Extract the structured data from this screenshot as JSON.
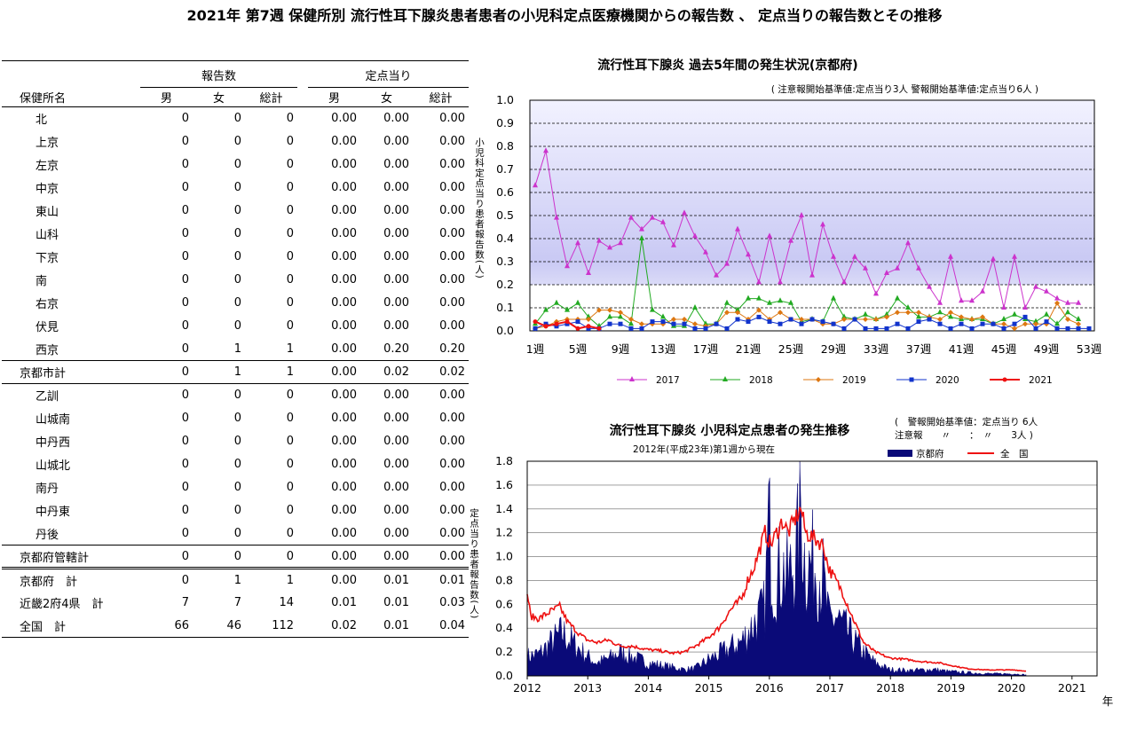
{
  "page_title": "2021年 第7週 保健所別 流行性耳下腺炎患者患者の小児科定点医療機関からの報告数 、 定点当りの報告数とその推移",
  "table": {
    "group_headers": [
      "報告数",
      "定点当り"
    ],
    "name_header": "保健所名",
    "col_headers": [
      "男",
      "女",
      "総計",
      "男",
      "女",
      "総計"
    ],
    "rows": [
      {
        "name": "北",
        "v": [
          "0",
          "0",
          "0",
          "0.00",
          "0.00",
          "0.00"
        ]
      },
      {
        "name": "上京",
        "v": [
          "0",
          "0",
          "0",
          "0.00",
          "0.00",
          "0.00"
        ]
      },
      {
        "name": "左京",
        "v": [
          "0",
          "0",
          "0",
          "0.00",
          "0.00",
          "0.00"
        ]
      },
      {
        "name": "中京",
        "v": [
          "0",
          "0",
          "0",
          "0.00",
          "0.00",
          "0.00"
        ]
      },
      {
        "name": "東山",
        "v": [
          "0",
          "0",
          "0",
          "0.00",
          "0.00",
          "0.00"
        ]
      },
      {
        "name": "山科",
        "v": [
          "0",
          "0",
          "0",
          "0.00",
          "0.00",
          "0.00"
        ]
      },
      {
        "name": "下京",
        "v": [
          "0",
          "0",
          "0",
          "0.00",
          "0.00",
          "0.00"
        ]
      },
      {
        "name": "南",
        "v": [
          "0",
          "0",
          "0",
          "0.00",
          "0.00",
          "0.00"
        ]
      },
      {
        "name": "右京",
        "v": [
          "0",
          "0",
          "0",
          "0.00",
          "0.00",
          "0.00"
        ]
      },
      {
        "name": "伏見",
        "v": [
          "0",
          "0",
          "0",
          "0.00",
          "0.00",
          "0.00"
        ]
      },
      {
        "name": "西京",
        "v": [
          "0",
          "1",
          "1",
          "0.00",
          "0.20",
          "0.20"
        ]
      },
      {
        "name": "京都市計",
        "v": [
          "0",
          "1",
          "1",
          "0.00",
          "0.02",
          "0.02"
        ],
        "type": "subtotal"
      },
      {
        "name": "乙訓",
        "v": [
          "0",
          "0",
          "0",
          "0.00",
          "0.00",
          "0.00"
        ]
      },
      {
        "name": "山城南",
        "v": [
          "0",
          "0",
          "0",
          "0.00",
          "0.00",
          "0.00"
        ]
      },
      {
        "name": "中丹西",
        "v": [
          "0",
          "0",
          "0",
          "0.00",
          "0.00",
          "0.00"
        ]
      },
      {
        "name": "山城北",
        "v": [
          "0",
          "0",
          "0",
          "0.00",
          "0.00",
          "0.00"
        ]
      },
      {
        "name": "南丹",
        "v": [
          "0",
          "0",
          "0",
          "0.00",
          "0.00",
          "0.00"
        ]
      },
      {
        "name": "中丹東",
        "v": [
          "0",
          "0",
          "0",
          "0.00",
          "0.00",
          "0.00"
        ]
      },
      {
        "name": "丹後",
        "v": [
          "0",
          "0",
          "0",
          "0.00",
          "0.00",
          "0.00"
        ]
      },
      {
        "name": "京都府管轄計",
        "v": [
          "0",
          "0",
          "0",
          "0.00",
          "0.00",
          "0.00"
        ],
        "type": "subtotal"
      },
      {
        "name": "京都府　計",
        "v": [
          "0",
          "1",
          "1",
          "0.00",
          "0.01",
          "0.01"
        ],
        "type": "total"
      },
      {
        "name": "近畿2府4県　計",
        "v": [
          "7",
          "7",
          "14",
          "0.01",
          "0.01",
          "0.03"
        ],
        "type": "total"
      },
      {
        "name": "全国　計",
        "v": [
          "66",
          "46",
          "112",
          "0.02",
          "0.01",
          "0.04"
        ],
        "type": "total"
      }
    ]
  },
  "chart_data": [
    {
      "type": "line",
      "title": "流行性耳下腺炎 過去5年間の発生状況(京都府)",
      "subtitle": "( 注意報開始基準値:定点当り3人  警報開始基準値:定点当り6人 )",
      "ylabel": "小児科定点当り患者報告数(人)",
      "ylim": [
        0,
        1.0
      ],
      "yticks": [
        "0.0",
        "0.1",
        "0.2",
        "0.3",
        "0.4",
        "0.5",
        "0.6",
        "0.7",
        "0.8",
        "0.9",
        "1.0"
      ],
      "xticks": [
        "1週",
        "5週",
        "9週",
        "13週",
        "17週",
        "21週",
        "25週",
        "29週",
        "33週",
        "37週",
        "41週",
        "45週",
        "49週",
        "53週"
      ],
      "grid": true,
      "legend_position": "bottom",
      "series": [
        {
          "name": "2017",
          "color": "#cc33cc",
          "marker": "triangle",
          "values": [
            0.63,
            0.78,
            0.49,
            0.28,
            0.38,
            0.25,
            0.39,
            0.36,
            0.38,
            0.49,
            0.44,
            0.49,
            0.47,
            0.37,
            0.51,
            0.41,
            0.34,
            0.24,
            0.29,
            0.44,
            0.33,
            0.21,
            0.41,
            0.21,
            0.39,
            0.5,
            0.24,
            0.46,
            0.32,
            0.21,
            0.32,
            0.27,
            0.16,
            0.25,
            0.27,
            0.38,
            0.27,
            0.19,
            0.12,
            0.32,
            0.13,
            0.13,
            0.17,
            0.31,
            0.1,
            0.32,
            0.1,
            0.19,
            0.17,
            0.14,
            0.12,
            0.12
          ]
        },
        {
          "name": "2018",
          "color": "#22aa22",
          "marker": "triangle",
          "values": [
            0.03,
            0.09,
            0.12,
            0.09,
            0.12,
            0.06,
            0.02,
            0.06,
            0.06,
            0.03,
            0.4,
            0.09,
            0.06,
            0.02,
            0.02,
            0.1,
            0.03,
            0.03,
            0.12,
            0.09,
            0.14,
            0.14,
            0.12,
            0.13,
            0.12,
            0.04,
            0.05,
            0.04,
            0.14,
            0.06,
            0.05,
            0.07,
            0.05,
            0.07,
            0.14,
            0.1,
            0.06,
            0.06,
            0.08,
            0.06,
            0.05,
            0.05,
            0.05,
            0.03,
            0.05,
            0.07,
            0.05,
            0.04,
            0.07,
            0.03,
            0.08,
            0.05
          ]
        },
        {
          "name": "2019",
          "color": "#dd7711",
          "marker": "diamond",
          "values": [
            0.01,
            0.02,
            0.04,
            0.05,
            0.05,
            0.05,
            0.09,
            0.09,
            0.08,
            0.05,
            0.03,
            0.03,
            0.03,
            0.05,
            0.05,
            0.03,
            0.02,
            0.03,
            0.08,
            0.08,
            0.05,
            0.09,
            0.05,
            0.08,
            0.05,
            0.05,
            0.05,
            0.03,
            0.03,
            0.05,
            0.05,
            0.05,
            0.05,
            0.06,
            0.08,
            0.08,
            0.08,
            0.06,
            0.05,
            0.08,
            0.06,
            0.05,
            0.06,
            0.03,
            0.03,
            0.01,
            0.03,
            0.03,
            0.03,
            0.12,
            0.05,
            0.03
          ]
        },
        {
          "name": "2020",
          "color": "#1133cc",
          "marker": "square",
          "values": [
            0.01,
            0.03,
            0.02,
            0.03,
            0.04,
            0.01,
            0.01,
            0.03,
            0.03,
            0.01,
            0.01,
            0.04,
            0.04,
            0.03,
            0.03,
            0.01,
            0.01,
            0.03,
            0.01,
            0.05,
            0.04,
            0.06,
            0.04,
            0.03,
            0.05,
            0.03,
            0.05,
            0.04,
            0.03,
            0.01,
            0.05,
            0.01,
            0.01,
            0.01,
            0.03,
            0.01,
            0.04,
            0.05,
            0.03,
            0.01,
            0.03,
            0.01,
            0.03,
            0.03,
            0.01,
            0.03,
            0.06,
            0.01,
            0.04,
            0.01,
            0.01,
            0.01,
            0.01
          ]
        },
        {
          "name": "2021",
          "color": "#ee1111",
          "marker": "circle",
          "values": [
            0.04,
            0.02,
            0.03,
            0.04,
            0.01,
            0.02,
            0.01
          ]
        }
      ]
    },
    {
      "type": "area",
      "title": "流行性耳下腺炎 小児科定点患者の発生推移",
      "subtitle": "2012年(平成23年)第1週から現在",
      "note_lines": [
        "(　警報開始基準値：定点当り 6人",
        "注意報　　〃　　：　〃　　3人 )"
      ],
      "ylabel": "定点当り患者報告数(人)",
      "xlabel": "年",
      "ylim": [
        0,
        1.8
      ],
      "yticks": [
        "0.0",
        "0.2",
        "0.4",
        "0.6",
        "0.8",
        "1.0",
        "1.2",
        "1.4",
        "1.6",
        "1.8"
      ],
      "xticks": [
        "2012",
        "2013",
        "2014",
        "2015",
        "2016",
        "2017",
        "2018",
        "2019",
        "2020",
        "2021"
      ],
      "grid": true,
      "legend_position": "top-right",
      "series": [
        {
          "name": "京都府",
          "color": "#0a0a78",
          "style": "area",
          "anchors": [
            [
              0,
              0.18
            ],
            [
              10,
              0.2
            ],
            [
              20,
              0.3
            ],
            [
              30,
              0.4
            ],
            [
              40,
              0.3
            ],
            [
              52,
              0.18
            ],
            [
              60,
              0.12
            ],
            [
              70,
              0.16
            ],
            [
              80,
              0.22
            ],
            [
              90,
              0.18
            ],
            [
              104,
              0.12
            ],
            [
              115,
              0.1
            ],
            [
              125,
              0.08
            ],
            [
              135,
              0.06
            ],
            [
              145,
              0.07
            ],
            [
              156,
              0.15
            ],
            [
              165,
              0.2
            ],
            [
              175,
              0.26
            ],
            [
              185,
              0.32
            ],
            [
              195,
              0.48
            ],
            [
              205,
              0.62
            ],
            [
              208,
              1.46
            ],
            [
              212,
              0.9
            ],
            [
              220,
              1.0
            ],
            [
              225,
              0.9
            ],
            [
              232,
              1.12
            ],
            [
              236,
              1.5
            ],
            [
              240,
              1.0
            ],
            [
              248,
              1.05
            ],
            [
              255,
              0.9
            ],
            [
              260,
              0.5
            ],
            [
              266,
              0.55
            ],
            [
              272,
              0.46
            ],
            [
              280,
              0.35
            ],
            [
              290,
              0.22
            ],
            [
              300,
              0.12
            ],
            [
              312,
              0.06
            ],
            [
              330,
              0.05
            ],
            [
              350,
              0.06
            ],
            [
              364,
              0.04
            ],
            [
              380,
              0.03
            ],
            [
              400,
              0.02
            ],
            [
              420,
              0.02
            ],
            [
              430,
              0.01
            ]
          ]
        },
        {
          "name": "全　国",
          "color": "#ee1111",
          "style": "line",
          "anchors": [
            [
              0,
              0.7
            ],
            [
              3,
              0.5
            ],
            [
              10,
              0.48
            ],
            [
              20,
              0.54
            ],
            [
              28,
              0.58
            ],
            [
              35,
              0.45
            ],
            [
              45,
              0.35
            ],
            [
              52,
              0.3
            ],
            [
              60,
              0.28
            ],
            [
              70,
              0.3
            ],
            [
              80,
              0.25
            ],
            [
              90,
              0.25
            ],
            [
              104,
              0.22
            ],
            [
              115,
              0.21
            ],
            [
              125,
              0.19
            ],
            [
              135,
              0.2
            ],
            [
              145,
              0.25
            ],
            [
              156,
              0.32
            ],
            [
              165,
              0.4
            ],
            [
              175,
              0.55
            ],
            [
              185,
              0.65
            ],
            [
              190,
              0.8
            ],
            [
              195,
              0.9
            ],
            [
              200,
              1.05
            ],
            [
              205,
              1.2
            ],
            [
              210,
              1.1
            ],
            [
              215,
              1.2
            ],
            [
              220,
              1.3
            ],
            [
              225,
              1.2
            ],
            [
              230,
              1.3
            ],
            [
              236,
              1.4
            ],
            [
              240,
              1.2
            ],
            [
              248,
              1.15
            ],
            [
              255,
              1.1
            ],
            [
              260,
              0.9
            ],
            [
              266,
              0.8
            ],
            [
              272,
              0.7
            ],
            [
              280,
              0.5
            ],
            [
              290,
              0.28
            ],
            [
              300,
              0.2
            ],
            [
              312,
              0.15
            ],
            [
              325,
              0.14
            ],
            [
              340,
              0.12
            ],
            [
              355,
              0.11
            ],
            [
              364,
              0.09
            ],
            [
              380,
              0.06
            ],
            [
              395,
              0.05
            ],
            [
              410,
              0.05
            ],
            [
              420,
              0.05
            ],
            [
              430,
              0.04
            ]
          ]
        }
      ]
    }
  ]
}
